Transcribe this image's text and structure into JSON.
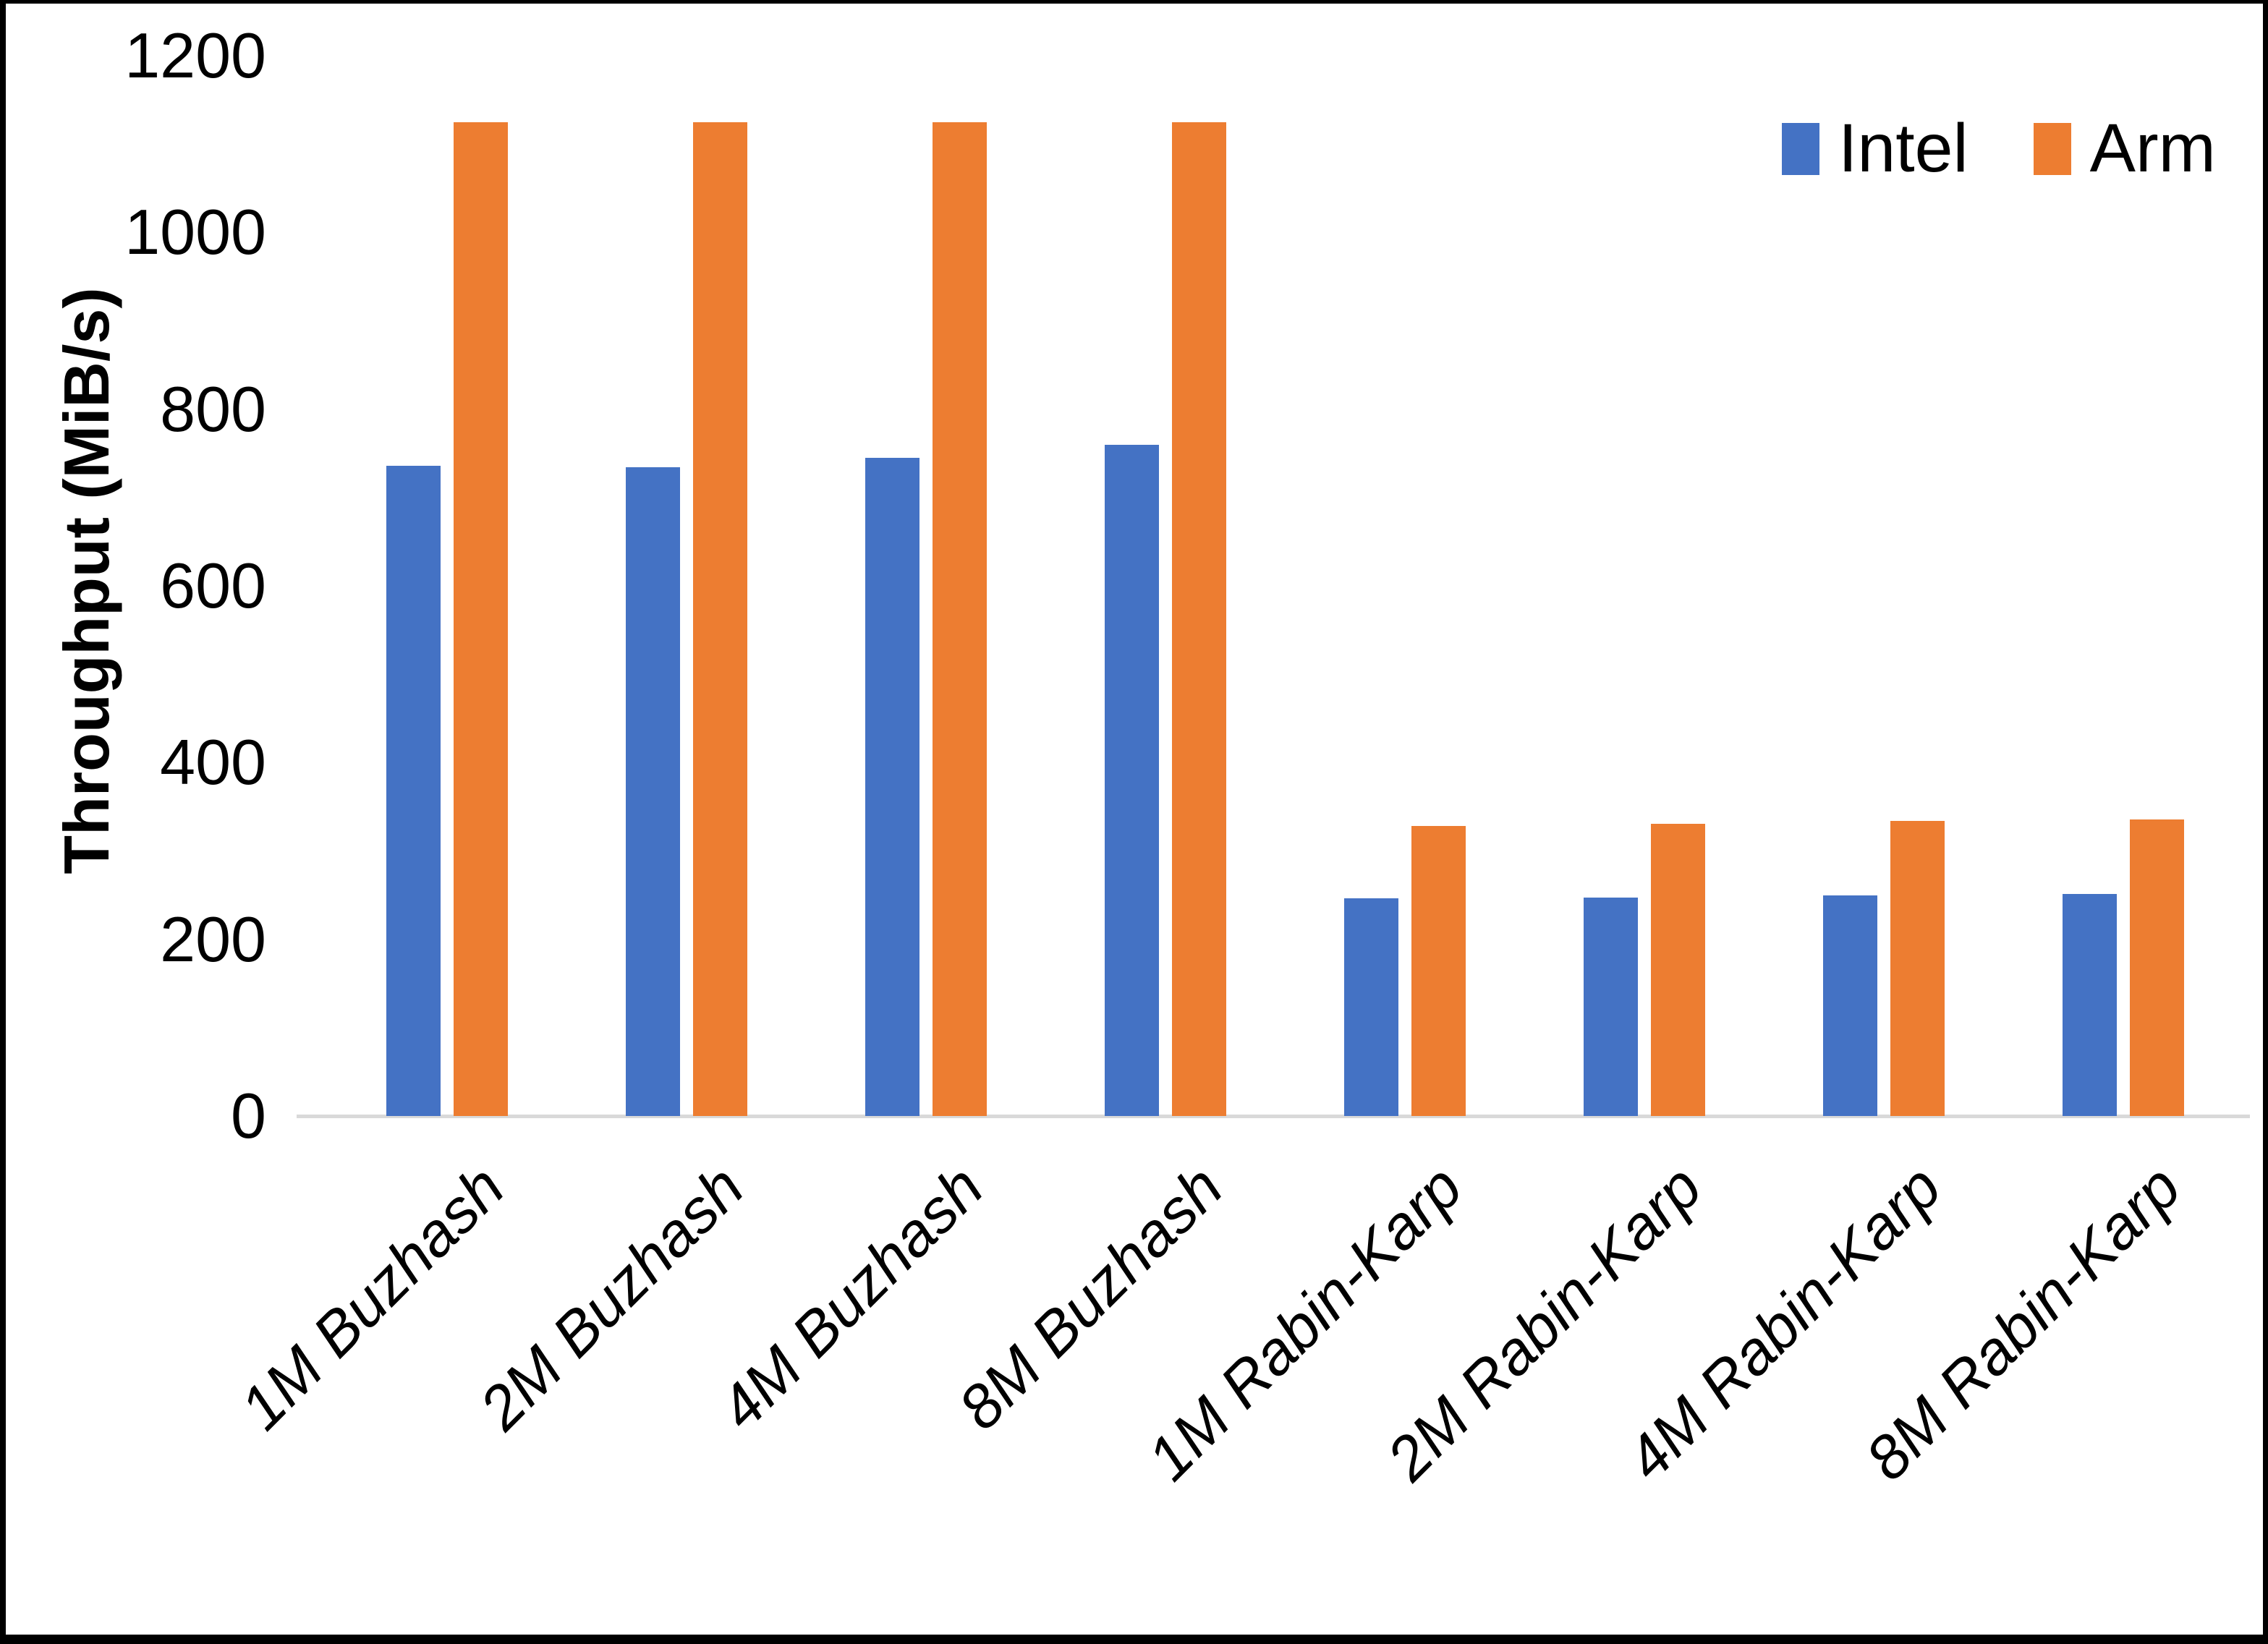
{
  "chart_data": {
    "type": "bar",
    "title": "",
    "xlabel": "",
    "ylabel": "Throughput (MiB/s)",
    "categories": [
      "1M Buzhash",
      "2M Buzhash",
      "4M Buzhash",
      "8M Buzhash",
      "1M Rabin-Karp",
      "2M Rabin-Karp",
      "4M Rabin-Karp",
      "8M Rabin-Karp"
    ],
    "series": [
      {
        "name": "Intel",
        "color": "#4472C4",
        "values": [
          736,
          734,
          745,
          760,
          246,
          247,
          250,
          251
        ]
      },
      {
        "name": "Arm",
        "color": "#ED7D31",
        "values": [
          1125,
          1125,
          1125,
          1125,
          328,
          331,
          334,
          336
        ]
      }
    ],
    "y_axis": {
      "min": 0,
      "max": 1200,
      "tick_step": 200,
      "ticks": [
        0,
        200,
        400,
        600,
        800,
        1000,
        1200
      ]
    },
    "legend": {
      "position": "top-right",
      "entries": [
        "Intel",
        "Arm"
      ]
    },
    "grid": false,
    "axis_line_color": "#D9D9D9",
    "text_color": "#000000",
    "background": "#FFFFFF",
    "frame_border_color": "#000000"
  }
}
